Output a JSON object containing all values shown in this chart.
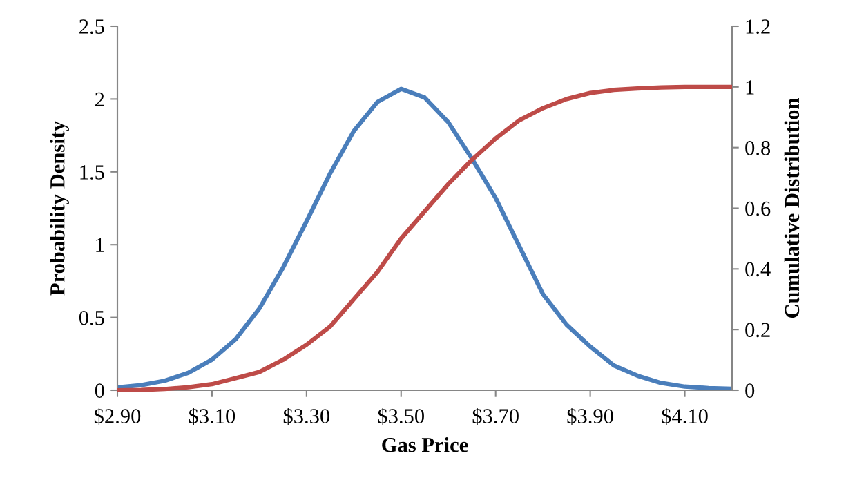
{
  "chart_data": {
    "type": "line",
    "xlabel": "Gas Price",
    "ylabel": "Probability Density",
    "y2label": "Cumulative Distribution",
    "x": [
      2.9,
      2.95,
      3.0,
      3.05,
      3.1,
      3.15,
      3.2,
      3.25,
      3.3,
      3.35,
      3.4,
      3.45,
      3.5,
      3.55,
      3.6,
      3.65,
      3.7,
      3.75,
      3.8,
      3.85,
      3.9,
      3.95,
      4.0,
      4.05,
      4.1,
      4.15,
      4.2
    ],
    "series": [
      {
        "color": "#4a7ebb",
        "values": [
          0.02,
          0.035,
          0.065,
          0.12,
          0.21,
          0.35,
          0.56,
          0.84,
          1.16,
          1.49,
          1.78,
          1.98,
          2.07,
          2.01,
          1.84,
          1.59,
          1.32,
          0.99,
          0.66,
          0.45,
          0.3,
          0.17,
          0.1,
          0.05,
          0.025,
          0.015,
          0.01
        ]
      },
      {
        "color": "#be4b48",
        "axis": "y2",
        "values": [
          0.0,
          0.001,
          0.004,
          0.01,
          0.02,
          0.04,
          0.06,
          0.1,
          0.15,
          0.21,
          0.3,
          0.39,
          0.5,
          0.59,
          0.68,
          0.76,
          0.83,
          0.89,
          0.93,
          0.96,
          0.98,
          0.99,
          0.995,
          0.998,
          1.0,
          1.0,
          1.0
        ]
      }
    ],
    "xlim": [
      2.9,
      4.2
    ],
    "xticks": [
      {
        "value": 2.9,
        "label": "$2.90"
      },
      {
        "value": 3.1,
        "label": "$3.10"
      },
      {
        "value": 3.3,
        "label": "$3.30"
      },
      {
        "value": 3.5,
        "label": "$3.50"
      },
      {
        "value": 3.7,
        "label": "$3.70"
      },
      {
        "value": 3.9,
        "label": "$3.90"
      },
      {
        "value": 4.1,
        "label": "$4.10"
      }
    ],
    "ylim": [
      0,
      2.5
    ],
    "yticks": [
      0,
      0.5,
      1,
      1.5,
      2,
      2.5
    ],
    "y2lim": [
      0,
      1.2
    ],
    "y2ticks": [
      0,
      0.2,
      0.4,
      0.6,
      0.8,
      1,
      1.2
    ],
    "grid": false,
    "marker": "none",
    "line_style": "solid"
  }
}
